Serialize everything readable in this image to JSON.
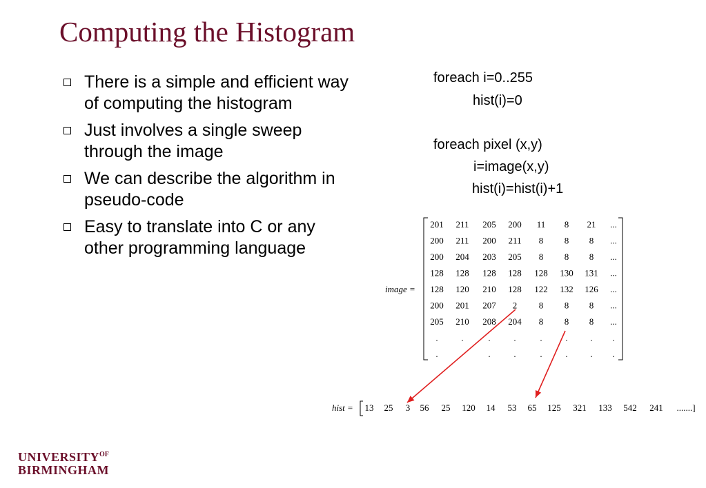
{
  "slide": {
    "title": "Computing the Histogram",
    "bullets": [
      "There is a simple and efficient way of  computing the histogram",
      "Just involves a single sweep through the image",
      "We can describe the algorithm in pseudo-code",
      "Easy to translate into C or any  other programming language"
    ],
    "code": [
      "foreach i=0..255",
      "hist(i)=0",
      "foreach pixel (x,y)",
      "i=image(x,y)",
      "hist(i)=hist(i)+1"
    ],
    "image_label": "image =",
    "image_matrix": [
      [
        "201",
        "211",
        "205",
        "200",
        "11",
        "8",
        "21",
        "..."
      ],
      [
        "200",
        "211",
        "200",
        "211",
        "8",
        "8",
        "8",
        "..."
      ],
      [
        "200",
        "204",
        "203",
        "205",
        "8",
        "8",
        "8",
        "..."
      ],
      [
        "128",
        "128",
        "128",
        "128",
        "128",
        "130",
        "131",
        "..."
      ],
      [
        "128",
        "120",
        "210",
        "128",
        "122",
        "132",
        "126",
        "..."
      ],
      [
        "200",
        "201",
        "207",
        "2",
        "8",
        "8",
        "8",
        "..."
      ],
      [
        "205",
        "210",
        "208",
        "204",
        "8",
        "8",
        "8",
        "..."
      ],
      [
        ".",
        ".",
        ".",
        ".",
        ".",
        ".",
        ".",
        "."
      ],
      [
        ".",
        "",
        ".",
        ".",
        ".",
        ".",
        ".",
        "."
      ]
    ],
    "hist_label": "hist =",
    "hist_values": [
      "13",
      "25",
      "3",
      "56",
      "25",
      "120",
      "14",
      "53",
      "65",
      "125",
      "321",
      "133",
      "542",
      "241",
      ".......]"
    ],
    "arrow_color": "#e02020",
    "logo": {
      "line1": "UNIVERSITY",
      "of": "OF",
      "line2": "BIRMINGHAM"
    }
  }
}
